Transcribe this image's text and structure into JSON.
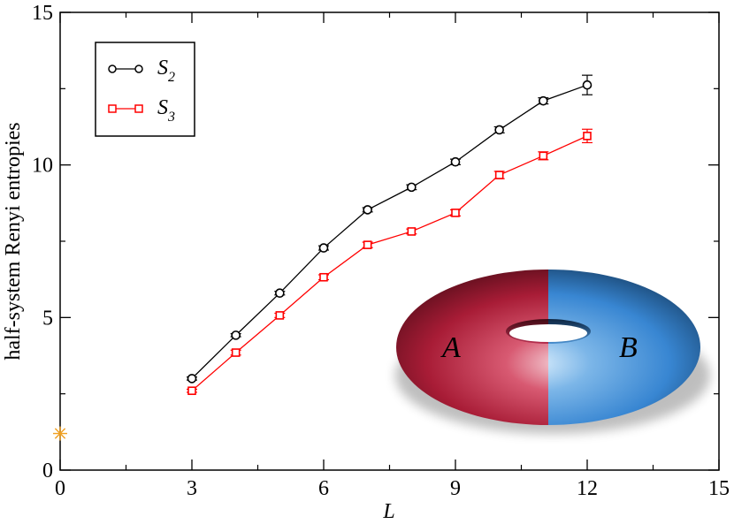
{
  "chart_data": {
    "type": "line",
    "xlabel": "L",
    "ylabel": "half-system Renyi entropies",
    "xlim": [
      0,
      15
    ],
    "ylim": [
      0,
      15
    ],
    "x_ticks": [
      0,
      3,
      6,
      9,
      12,
      15
    ],
    "y_ticks": [
      0,
      5,
      10,
      15
    ],
    "grid": false,
    "legend_position": "top-left",
    "series": [
      {
        "name": "S2",
        "name_base": "S",
        "name_sub": "2",
        "color": "#000000",
        "marker": "circle",
        "x": [
          3,
          4,
          5,
          6,
          7,
          8,
          9,
          10,
          11,
          12
        ],
        "y": [
          3.0,
          4.42,
          5.8,
          7.28,
          8.53,
          9.27,
          10.1,
          11.15,
          12.1,
          12.62
        ],
        "yerr": [
          0.05,
          0.05,
          0.06,
          0.07,
          0.07,
          0.08,
          0.09,
          0.1,
          0.1,
          0.32
        ]
      },
      {
        "name": "S3",
        "name_base": "S",
        "name_sub": "3",
        "color": "#ff0000",
        "marker": "square",
        "x": [
          3,
          4,
          5,
          6,
          7,
          8,
          9,
          10,
          11,
          12
        ],
        "y": [
          2.6,
          3.85,
          5.07,
          6.32,
          7.38,
          7.82,
          8.43,
          9.67,
          10.3,
          10.95
        ],
        "yerr": [
          0.05,
          0.08,
          0.07,
          0.08,
          0.09,
          0.08,
          0.1,
          0.12,
          0.13,
          0.22
        ]
      }
    ],
    "extra_points": [
      {
        "x": 0,
        "y": 1.2,
        "marker": "asterisk",
        "color": "#f0a020"
      }
    ],
    "inset": {
      "description_labels": [
        "A",
        "B"
      ],
      "colors": {
        "left": "#b0203a",
        "right": "#3a8ad6"
      }
    }
  }
}
